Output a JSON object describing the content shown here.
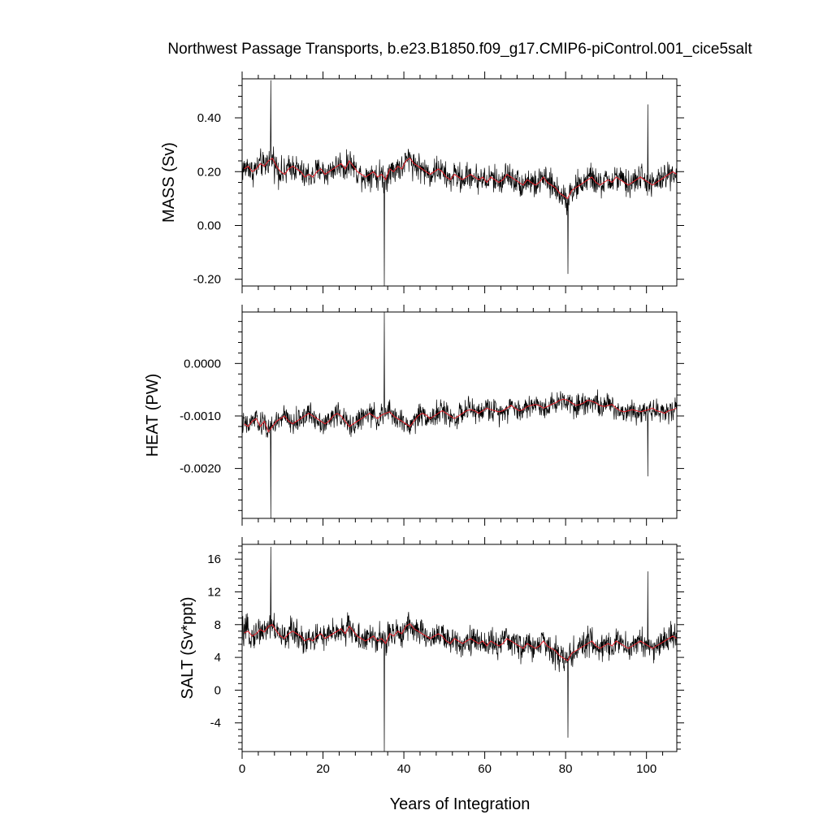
{
  "title": "Northwest Passage Transports, b.e23.B1850.f09_g17.CMIP6-piControl.001_cice5salt",
  "xlabel": "Years of Integration",
  "colors": {
    "raw_series": "#000000",
    "smoothed_series": "#e8202a",
    "frame": "#000000"
  },
  "chart_data": [
    {
      "type": "line",
      "ylabel": "MASS (Sv)",
      "xlim": [
        0,
        107.5
      ],
      "ylim": [
        -0.225,
        0.545
      ],
      "yticks": [
        -0.2,
        0.0,
        0.2,
        0.4
      ],
      "ytick_labels": [
        "-0.20",
        "0.00",
        "0.20",
        "0.40"
      ],
      "xticks": [
        0,
        20,
        40,
        60,
        80,
        100
      ],
      "xtick_labels": [
        "",
        "",
        "",
        "",
        "",
        ""
      ],
      "grid": false,
      "series_style": {
        "raw": "monthly values (thin black)",
        "smoothed": "annual mean (red)"
      },
      "raw_mean_by_year": [
        0.21,
        0.22,
        0.2,
        0.21,
        0.23,
        0.22,
        0.24,
        0.25,
        0.22,
        0.2,
        0.19,
        0.21,
        0.22,
        0.21,
        0.2,
        0.18,
        0.19,
        0.18,
        0.2,
        0.21,
        0.19,
        0.2,
        0.21,
        0.22,
        0.23,
        0.21,
        0.24,
        0.22,
        0.2,
        0.19,
        0.18,
        0.19,
        0.2,
        0.18,
        0.19,
        0.17,
        0.21,
        0.2,
        0.22,
        0.21,
        0.24,
        0.25,
        0.23,
        0.22,
        0.21,
        0.2,
        0.19,
        0.2,
        0.21,
        0.2,
        0.18,
        0.17,
        0.19,
        0.18,
        0.17,
        0.18,
        0.19,
        0.18,
        0.17,
        0.18,
        0.16,
        0.18,
        0.17,
        0.16,
        0.17,
        0.19,
        0.18,
        0.17,
        0.16,
        0.15,
        0.17,
        0.16,
        0.15,
        0.16,
        0.18,
        0.16,
        0.15,
        0.14,
        0.12,
        0.11,
        0.1,
        0.13,
        0.14,
        0.15,
        0.16,
        0.17,
        0.18,
        0.16,
        0.15,
        0.16,
        0.17,
        0.16,
        0.18,
        0.17,
        0.16,
        0.15,
        0.16,
        0.17,
        0.18,
        0.17,
        0.16,
        0.15,
        0.16,
        0.17,
        0.18,
        0.19,
        0.2,
        0.19
      ],
      "noise_amplitude": 0.075,
      "spikes": [
        {
          "x": 7.1,
          "y": 0.54
        },
        {
          "x": 35.2,
          "y": -0.225
        },
        {
          "x": 80.6,
          "y": -0.18
        },
        {
          "x": 100.3,
          "y": 0.45
        }
      ]
    },
    {
      "type": "line",
      "ylabel": "HEAT (PW)",
      "xlim": [
        0,
        107.5
      ],
      "ylim": [
        -0.00295,
        0.00098
      ],
      "yticks": [
        -0.002,
        -0.001,
        0.0
      ],
      "ytick_labels": [
        "-0.0020",
        "-0.0010",
        "0.0000"
      ],
      "xticks": [
        0,
        20,
        40,
        60,
        80,
        100
      ],
      "xtick_labels": [
        "",
        "",
        "",
        "",
        "",
        ""
      ],
      "grid": false,
      "series_style": {
        "raw": "monthly values (thin black)",
        "smoothed": "annual mean (red)"
      },
      "raw_mean_by_year": [
        -0.00115,
        -0.0012,
        -0.0011,
        -0.00105,
        -0.0012,
        -0.0011,
        -0.0013,
        -0.0012,
        -0.0011,
        -0.00105,
        -0.001,
        -0.0011,
        -0.00115,
        -0.0011,
        -0.00105,
        -0.001,
        -0.00095,
        -0.001,
        -0.00105,
        -0.0011,
        -0.00115,
        -0.0011,
        -0.001,
        -0.00095,
        -0.001,
        -0.0011,
        -0.0012,
        -0.00115,
        -0.0011,
        -0.00105,
        -0.001,
        -0.00095,
        -0.001,
        -0.00105,
        -0.00098,
        -0.00095,
        -0.00092,
        -0.001,
        -0.00105,
        -0.0011,
        -0.00115,
        -0.0012,
        -0.0011,
        -0.001,
        -0.00095,
        -0.00098,
        -0.00105,
        -0.001,
        -0.00095,
        -0.0009,
        -0.00095,
        -0.001,
        -0.00105,
        -0.001,
        -0.00095,
        -0.0009,
        -0.00088,
        -0.0009,
        -0.00095,
        -0.0009,
        -0.00085,
        -0.00088,
        -0.0009,
        -0.00092,
        -0.0009,
        -0.00085,
        -0.0008,
        -0.00085,
        -0.0009,
        -0.00088,
        -0.00082,
        -0.0008,
        -0.00078,
        -0.0008,
        -0.00085,
        -0.00082,
        -0.00078,
        -0.00075,
        -0.0007,
        -0.00068,
        -0.0007,
        -0.00075,
        -0.0008,
        -0.00078,
        -0.00075,
        -0.0007,
        -0.00072,
        -0.00075,
        -0.0008,
        -0.00082,
        -0.0008,
        -0.00078,
        -0.00085,
        -0.0009,
        -0.00092,
        -0.0009,
        -0.00088,
        -0.0009,
        -0.00092,
        -0.0009,
        -0.00088,
        -0.00085,
        -0.0009,
        -0.00092,
        -0.00095,
        -0.0009,
        -0.00088,
        -0.00085
      ],
      "noise_amplitude": 0.00032,
      "spikes": [
        {
          "x": 7.1,
          "y": -0.00295
        },
        {
          "x": 35.2,
          "y": 0.00098
        },
        {
          "x": 100.3,
          "y": -0.00215
        }
      ]
    },
    {
      "type": "line",
      "ylabel": "SALT (Sv*ppt)",
      "xlim": [
        0,
        107.5
      ],
      "ylim": [
        -7.5,
        17.8
      ],
      "yticks": [
        -4,
        0,
        4,
        8,
        12,
        16
      ],
      "ytick_labels": [
        "-4",
        "0",
        "4",
        "8",
        "12",
        "16"
      ],
      "xticks": [
        0,
        20,
        40,
        60,
        80,
        100
      ],
      "xtick_labels": [
        "0",
        "20",
        "40",
        "60",
        "80",
        "100"
      ],
      "grid": false,
      "series_style": {
        "raw": "monthly values (thin black)",
        "smoothed": "annual mean (red)"
      },
      "raw_mean_by_year": [
        7.0,
        7.2,
        6.6,
        6.9,
        7.4,
        7.1,
        7.8,
        8.0,
        7.2,
        6.6,
        6.3,
        6.9,
        7.2,
        6.9,
        6.6,
        6.0,
        6.3,
        6.0,
        6.6,
        6.9,
        6.3,
        6.6,
        6.9,
        7.2,
        7.5,
        6.9,
        7.8,
        7.2,
        6.6,
        6.3,
        6.0,
        6.3,
        6.6,
        6.0,
        6.3,
        5.7,
        6.9,
        6.6,
        7.2,
        6.9,
        7.8,
        8.1,
        7.5,
        7.2,
        6.9,
        6.6,
        6.3,
        6.6,
        6.9,
        6.6,
        6.0,
        5.7,
        6.3,
        6.0,
        5.7,
        6.0,
        6.3,
        6.0,
        5.7,
        6.0,
        5.4,
        6.0,
        5.7,
        5.4,
        5.7,
        6.3,
        6.0,
        5.7,
        5.4,
        5.1,
        5.7,
        5.4,
        5.1,
        5.4,
        6.0,
        5.4,
        5.1,
        4.8,
        4.2,
        3.9,
        3.6,
        4.5,
        4.8,
        5.1,
        5.4,
        5.7,
        6.0,
        5.4,
        5.1,
        5.4,
        5.7,
        5.4,
        6.0,
        5.7,
        5.4,
        5.1,
        5.4,
        5.7,
        6.0,
        5.7,
        5.4,
        5.1,
        5.4,
        5.7,
        6.0,
        6.3,
        6.6,
        6.3
      ],
      "noise_amplitude": 2.5,
      "spikes": [
        {
          "x": 7.1,
          "y": 17.5
        },
        {
          "x": 35.2,
          "y": -7.5
        },
        {
          "x": 80.6,
          "y": -5.8
        },
        {
          "x": 100.3,
          "y": 14.5
        }
      ]
    }
  ]
}
